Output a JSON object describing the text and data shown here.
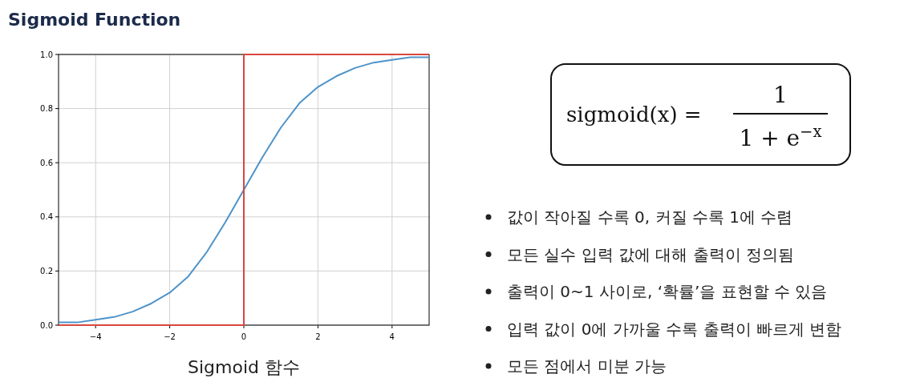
{
  "chart_data": {
    "type": "line",
    "title": "Sigmoid Function",
    "xlabel": "Sigmoid 함수",
    "xlim": [
      -5,
      5
    ],
    "xticks": [
      -4,
      -2,
      0,
      2,
      4
    ],
    "ylim": [
      0,
      1
    ],
    "yticks": [
      {
        "value": 0,
        "label": "0.0"
      },
      {
        "value": 0.2,
        "label": "0.2"
      },
      {
        "value": 0.4,
        "label": "0.4"
      },
      {
        "value": 0.6,
        "label": "0.6"
      },
      {
        "value": 0.8,
        "label": "0.8"
      },
      {
        "value": 1,
        "label": "1.0"
      }
    ],
    "grid": true,
    "series": [
      {
        "color": "#4e93c9",
        "x": [
          -5,
          -4.5,
          -4,
          -3.5,
          -3,
          -2.5,
          -2,
          -1.5,
          -1,
          -0.5,
          0,
          0.5,
          1,
          1.5,
          2,
          2.5,
          3,
          3.5,
          4,
          4.5,
          5
        ],
        "values": [
          0.01,
          0.01,
          0.02,
          0.03,
          0.05,
          0.08,
          0.12,
          0.18,
          0.27,
          0.38,
          0.5,
          0.62,
          0.73,
          0.82,
          0.88,
          0.92,
          0.95,
          0.97,
          0.98,
          0.99,
          0.99
        ]
      },
      {
        "color": "#d9473f",
        "x": [
          -5,
          0,
          0,
          5
        ],
        "values": [
          0,
          0,
          1,
          1
        ]
      }
    ],
    "annotations": [
      "sigmoid(x) =",
      "1",
      "1 + e$^{−x}$",
      "값이 작아질 수록 0, 커질 수록 1에 수렴",
      "모든 실수 입력 값에 대해 출력이 정의됨",
      "출력이 0~1 사이로, ‘확률’을 표현할 수 있음",
      "입력 값이 0에 가까울 수록 출력이 빠르게 변함",
      "모든 점에서 미분 가능"
    ]
  }
}
